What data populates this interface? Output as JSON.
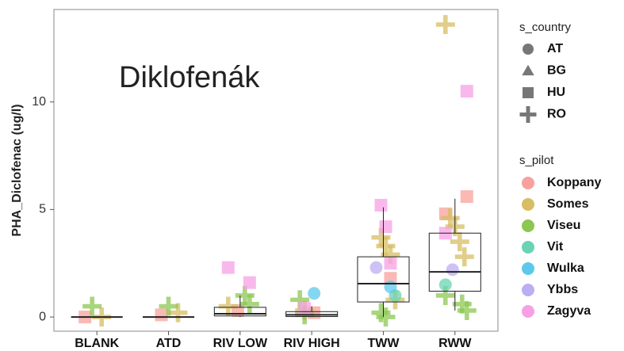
{
  "chart_data": {
    "type": "box",
    "annotation": "Diklofenák",
    "y_label": "PHA_Diclofenac (ug/l)",
    "categories": [
      "BLANK",
      "ATD",
      "RIV  LOW",
      "RIV  HIGH",
      "TWW",
      "RWW"
    ],
    "ylim": [
      -0.66,
      14.3
    ],
    "yticks": [
      0,
      5,
      10
    ],
    "boxes": [
      {
        "whislo": 0,
        "q1": 0,
        "median": 0,
        "q3": 0,
        "whishi": 0
      },
      {
        "whislo": 0,
        "q1": 0,
        "median": 0,
        "q3": 0,
        "whishi": 0
      },
      {
        "whislo": 0,
        "q1": 0.05,
        "median": 0.15,
        "q3": 0.45,
        "whishi": 1.0
      },
      {
        "whislo": 0,
        "q1": 0.02,
        "median": 0.1,
        "q3": 0.25,
        "whishi": 0.5
      },
      {
        "whislo": 0,
        "q1": 0.7,
        "median": 1.55,
        "q3": 2.8,
        "whishi": 5.1
      },
      {
        "whislo": 0.3,
        "q1": 1.2,
        "median": 2.1,
        "q3": 3.9,
        "whishi": 5.5
      }
    ],
    "country_legend_title": "s_country",
    "countries": [
      "AT",
      "BG",
      "HU",
      "RO"
    ],
    "pilot_legend_title": "s_pilot",
    "series": [
      {
        "name": "Koppany",
        "color": "#f8a19b",
        "points": [
          {
            "x": "BLANK",
            "y": 0,
            "country": "HU"
          },
          {
            "x": "ATD",
            "y": 0.1,
            "country": "HU"
          },
          {
            "x": "RIV  LOW",
            "y": 0.3,
            "country": "HU"
          },
          {
            "x": "RIV  HIGH",
            "y": 0.2,
            "country": "HU"
          },
          {
            "x": "TWW",
            "y": 1.8,
            "country": "HU"
          },
          {
            "x": "RWW",
            "y": 5.6,
            "country": "HU"
          },
          {
            "x": "RWW",
            "y": 4.8,
            "country": "HU"
          }
        ]
      },
      {
        "name": "Somes",
        "color": "#d7bd63",
        "points": [
          {
            "x": "BLANK",
            "y": 0,
            "country": "RO"
          },
          {
            "x": "ATD",
            "y": 0.2,
            "country": "RO"
          },
          {
            "x": "RIV  LOW",
            "y": 0.5,
            "country": "RO"
          },
          {
            "x": "RIV  HIGH",
            "y": 0.3,
            "country": "RO"
          },
          {
            "x": "TWW",
            "y": 3.7,
            "country": "RO"
          },
          {
            "x": "TWW",
            "y": 3.3,
            "country": "RO"
          },
          {
            "x": "TWW",
            "y": 2.9,
            "country": "RO"
          },
          {
            "x": "TWW",
            "y": 0.8,
            "country": "RO"
          },
          {
            "x": "RWW",
            "y": 13.6,
            "country": "RO"
          },
          {
            "x": "RWW",
            "y": 4.6,
            "country": "RO"
          },
          {
            "x": "RWW",
            "y": 4.2,
            "country": "RO"
          },
          {
            "x": "RWW",
            "y": 3.5,
            "country": "RO"
          },
          {
            "x": "RWW",
            "y": 2.8,
            "country": "RO"
          }
        ]
      },
      {
        "name": "Viseu",
        "color": "#8cc752",
        "points": [
          {
            "x": "BLANK",
            "y": 0.5,
            "country": "RO"
          },
          {
            "x": "ATD",
            "y": 0.5,
            "country": "RO"
          },
          {
            "x": "RIV  LOW",
            "y": 1.0,
            "country": "RO"
          },
          {
            "x": "RIV  LOW",
            "y": 0.6,
            "country": "RO"
          },
          {
            "x": "RIV  HIGH",
            "y": 0.8,
            "country": "RO"
          },
          {
            "x": "RIV  HIGH",
            "y": 0.1,
            "country": "RO"
          },
          {
            "x": "TWW",
            "y": 0.2,
            "country": "RO"
          },
          {
            "x": "TWW",
            "y": 0,
            "country": "RO"
          },
          {
            "x": "RWW",
            "y": 0.6,
            "country": "RO"
          },
          {
            "x": "RWW",
            "y": 0.3,
            "country": "RO"
          },
          {
            "x": "RWW",
            "y": 1.0,
            "country": "RO"
          }
        ]
      },
      {
        "name": "Vit",
        "color": "#6ad3b4",
        "points": [
          {
            "x": "TWW",
            "y": 1.0,
            "country": "AT"
          },
          {
            "x": "RWW",
            "y": 1.5,
            "country": "AT"
          }
        ]
      },
      {
        "name": "Wulka",
        "color": "#5cc8ec",
        "points": [
          {
            "x": "RIV  HIGH",
            "y": 1.1,
            "country": "AT"
          },
          {
            "x": "TWW",
            "y": 1.4,
            "country": "AT"
          }
        ]
      },
      {
        "name": "Ybbs",
        "color": "#bdaef2",
        "points": [
          {
            "x": "TWW",
            "y": 2.3,
            "country": "AT"
          },
          {
            "x": "RWW",
            "y": 2.2,
            "country": "AT"
          }
        ]
      },
      {
        "name": "Zagyva",
        "color": "#f7a0e6",
        "points": [
          {
            "x": "RIV  LOW",
            "y": 1.6,
            "country": "HU"
          },
          {
            "x": "RIV  LOW",
            "y": 2.3,
            "country": "HU"
          },
          {
            "x": "RIV  HIGH",
            "y": 0.4,
            "country": "HU"
          },
          {
            "x": "TWW",
            "y": 5.2,
            "country": "HU"
          },
          {
            "x": "TWW",
            "y": 4.2,
            "country": "HU"
          },
          {
            "x": "TWW",
            "y": 2.5,
            "country": "HU"
          },
          {
            "x": "RWW",
            "y": 10.5,
            "country": "HU"
          },
          {
            "x": "RWW",
            "y": 3.9,
            "country": "HU"
          }
        ]
      }
    ]
  }
}
